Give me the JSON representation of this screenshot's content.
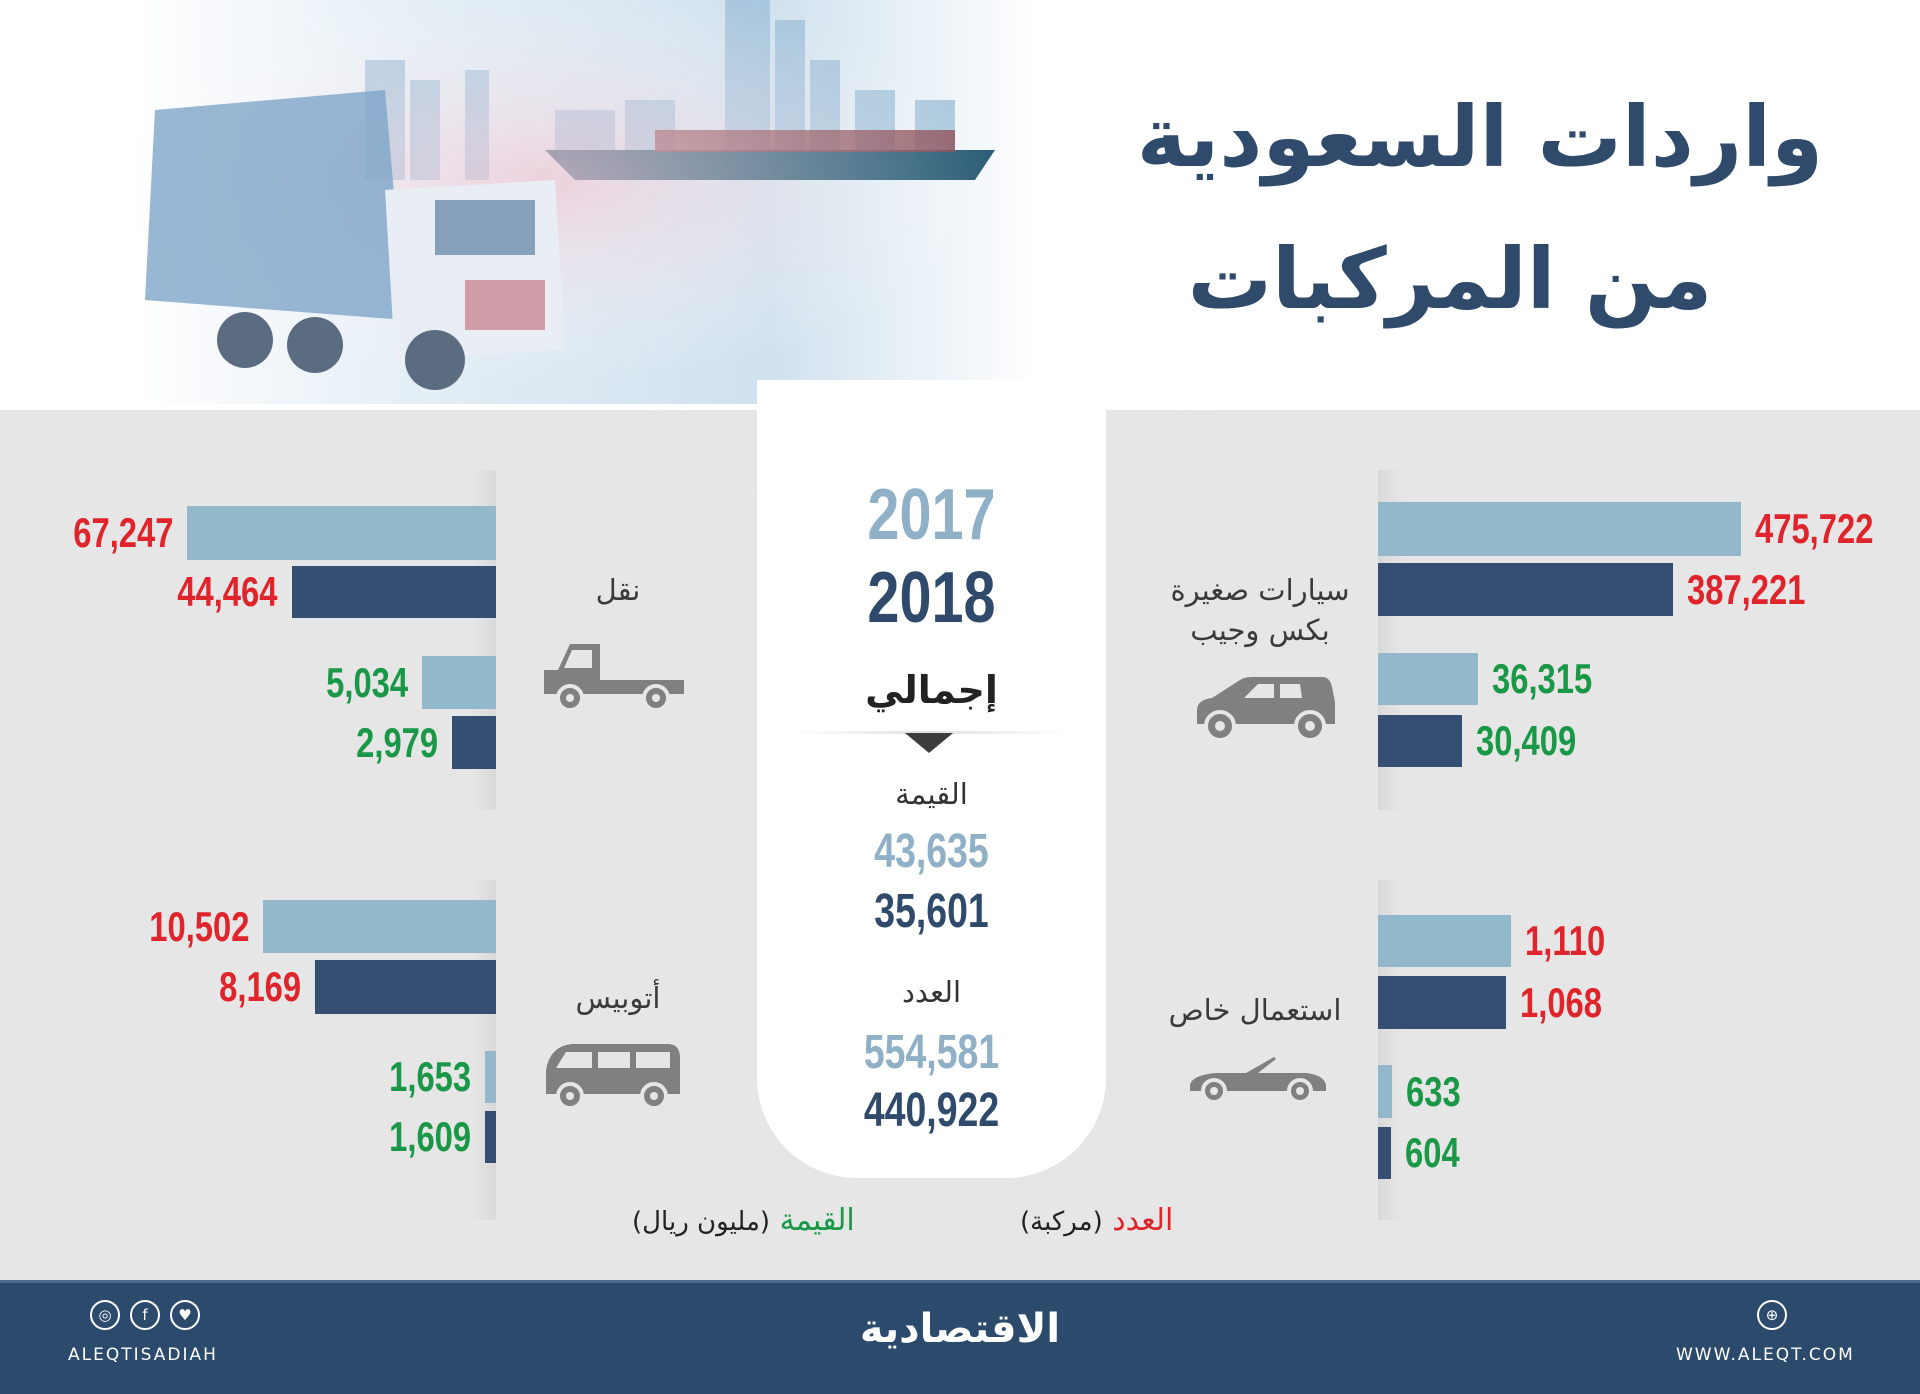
{
  "header": {
    "title_line1": "واردات السعودية",
    "title_line2": "من المركبات"
  },
  "center": {
    "year_2017": "2017",
    "year_2018": "2018",
    "total_label": "إجمالي",
    "value_label": "القيمة",
    "value_2017": "43,635",
    "value_2018": "35,601",
    "count_label": "العدد",
    "count_2017": "554,581",
    "count_2018": "440,922"
  },
  "colors": {
    "bar_2017": "#93b8cb",
    "bar_2018": "#344f72",
    "count_text": "#e0242b",
    "value_text": "#1a9848",
    "title": "#2f4a6b",
    "footer": "#2c4a6b"
  },
  "chart_data": {
    "type": "bar",
    "orientation": "horizontal",
    "years": [
      "2017",
      "2018"
    ],
    "legend": {
      "count_label": "العدد",
      "count_unit": "(مركبة)",
      "value_label": "القيمة",
      "value_unit": "(مليون ريال)"
    },
    "categories": [
      {
        "id": "small-cars",
        "name_lines": [
          "سيارات صغيرة",
          "بكس وجيب"
        ],
        "icon": "suv-icon",
        "count": [
          475722,
          387221
        ],
        "value": [
          36315,
          30409
        ]
      },
      {
        "id": "transport",
        "name_lines": [
          "نقل"
        ],
        "icon": "pickup-truck-icon",
        "count": [
          67247,
          44464
        ],
        "value": [
          5034,
          2979
        ]
      },
      {
        "id": "special-use",
        "name_lines": [
          "استعمال خاص"
        ],
        "icon": "convertible-car-icon",
        "count": [
          1110,
          1068
        ],
        "value": [
          633,
          604
        ]
      },
      {
        "id": "bus",
        "name_lines": [
          "أتوبيس"
        ],
        "icon": "van-icon",
        "count": [
          10502,
          8169
        ],
        "value": [
          1653,
          1609
        ]
      }
    ]
  },
  "footer": {
    "social_handle": "ALEQTISADIAH",
    "logo_text": "الاقتصادية",
    "website": "WWW.ALEQT.COM",
    "social_icons": [
      "instagram-icon",
      "facebook-icon",
      "twitter-icon"
    ],
    "web_icon": "globe-icon"
  }
}
